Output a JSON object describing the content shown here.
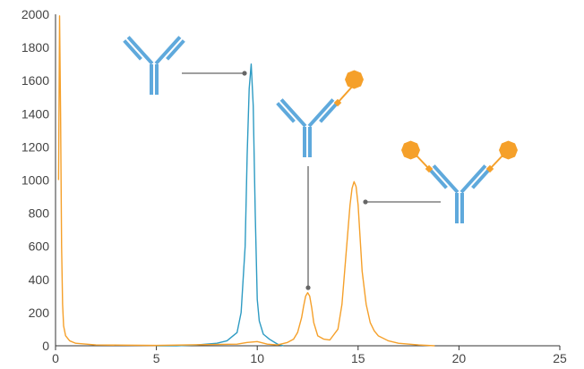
{
  "chart_data": {
    "type": "line",
    "title": "",
    "xlabel": "",
    "ylabel": "",
    "xlim": [
      0,
      25
    ],
    "ylim": [
      0,
      2000
    ],
    "x_ticks": [
      0,
      5,
      10,
      15,
      20,
      25
    ],
    "y_ticks": [
      0,
      200,
      400,
      600,
      800,
      1000,
      1200,
      1400,
      1600,
      1800,
      2000
    ],
    "x_tick_labels": [
      "0",
      "5",
      "10",
      "15",
      "20",
      "25"
    ],
    "y_tick_labels": [
      "0",
      "200",
      "400",
      "600",
      "800",
      "1000",
      "1200",
      "1400",
      "1600",
      "1800",
      "2000"
    ],
    "grid": false,
    "legend": "none",
    "series": [
      {
        "color": "#2e9bc3",
        "x": [
          5.0,
          6.0,
          7.0,
          8.0,
          8.5,
          9.0,
          9.2,
          9.4,
          9.5,
          9.6,
          9.7,
          9.8,
          9.9,
          10.0,
          10.1,
          10.3,
          10.6,
          11.0,
          11.3
        ],
        "y": [
          0,
          0,
          5,
          15,
          30,
          80,
          200,
          600,
          1150,
          1550,
          1700,
          1450,
          800,
          280,
          150,
          70,
          40,
          10,
          0
        ]
      },
      {
        "color": "#f5a02a",
        "x": [
          0.15,
          0.2,
          0.25,
          0.3,
          0.35,
          0.4,
          0.5,
          0.7,
          1.0,
          2.0,
          5.0,
          9.0,
          9.5,
          10.0,
          10.5,
          11.0,
          11.5,
          11.8,
          12.0,
          12.2,
          12.3,
          12.4,
          12.5,
          12.6,
          12.7,
          12.8,
          13.0,
          13.3,
          13.6,
          14.0,
          14.2,
          14.4,
          14.6,
          14.7,
          14.8,
          14.9,
          15.0,
          15.1,
          15.2,
          15.4,
          15.6,
          15.8,
          16.0,
          16.5,
          17.0,
          18.0,
          18.8
        ],
        "y": [
          1000,
          1990,
          1400,
          600,
          250,
          120,
          60,
          30,
          15,
          5,
          2,
          10,
          20,
          25,
          10,
          5,
          20,
          40,
          80,
          170,
          240,
          300,
          320,
          300,
          230,
          140,
          60,
          40,
          35,
          100,
          250,
          550,
          850,
          950,
          990,
          960,
          850,
          650,
          450,
          250,
          140,
          90,
          60,
          30,
          15,
          5,
          0
        ]
      }
    ]
  },
  "annotations": {
    "antibody_icon_color": "#5fa9dc",
    "payload_color": "#f5a02a",
    "leader_line_color": "#666666"
  }
}
